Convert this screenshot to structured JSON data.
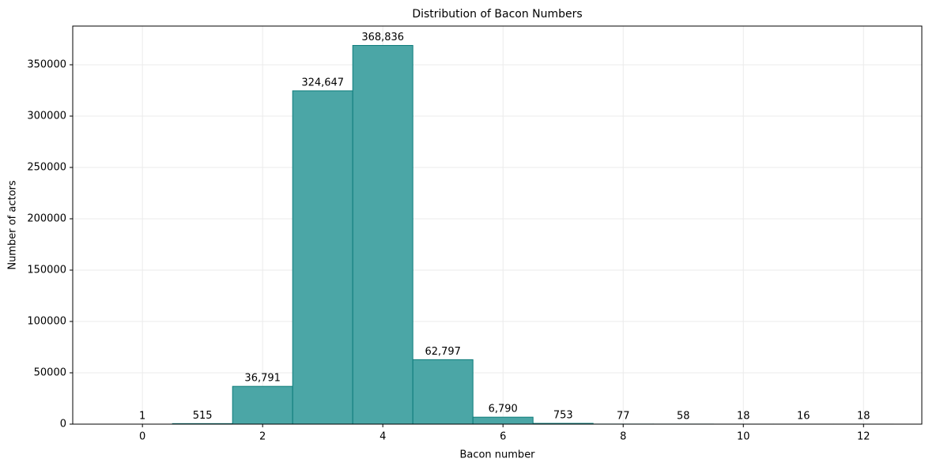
{
  "chart_data": {
    "type": "histogram",
    "title": "Distribution of Bacon Numbers",
    "xlabel": "Bacon number",
    "ylabel": "Number of actors",
    "bins": [
      -0.5,
      0.5,
      1.5,
      2.5,
      3.5,
      4.5,
      5.5,
      6.5,
      7.5,
      8.5,
      9.5,
      10.5,
      11.5,
      12.5
    ],
    "values": [
      1,
      515,
      36791,
      324647,
      368836,
      62797,
      6790,
      753,
      77,
      58,
      18,
      16,
      18
    ],
    "value_labels": [
      "1",
      "515",
      "36,791",
      "324,647",
      "368,836",
      "62,797",
      "6,790",
      "753",
      "77",
      "58",
      "18",
      "16",
      "18"
    ],
    "color": "#4ba6a6",
    "edgecolor": "#0e7c7b",
    "xlim": [
      -1.16,
      12.97
    ],
    "xticks": [
      0,
      2,
      4,
      6,
      8,
      10,
      12
    ],
    "ylim": [
      0,
      387700
    ],
    "yticks": [
      0,
      50000,
      100000,
      150000,
      200000,
      250000,
      300000,
      350000
    ],
    "grid": true
  }
}
